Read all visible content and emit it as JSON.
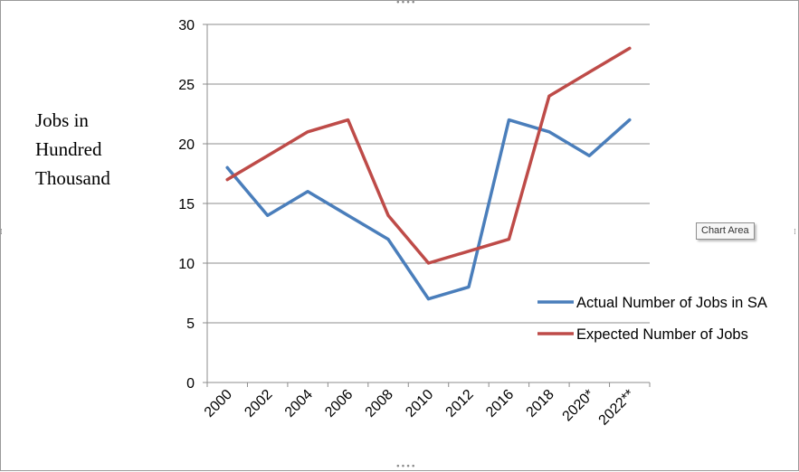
{
  "chart_data": {
    "type": "line",
    "categories": [
      "2000",
      "2002",
      "2004",
      "2006",
      "2008",
      "2010",
      "2012",
      "2016",
      "2018",
      "2020*",
      "2022**"
    ],
    "series": [
      {
        "name": "Actual Number of Jobs in SA",
        "color": "#4a7ebb",
        "values": [
          18,
          14,
          16,
          14,
          12,
          7,
          8,
          22,
          21,
          19,
          22
        ]
      },
      {
        "name": "Expected Number of Jobs",
        "color": "#be4b48",
        "values": [
          17,
          19,
          21,
          22,
          14,
          10,
          11,
          12,
          24,
          26,
          28
        ]
      }
    ],
    "ylabel_lines": [
      "Jobs in",
      "Hundred",
      "Thousand"
    ],
    "yticks": [
      0,
      5,
      10,
      15,
      20,
      25,
      30
    ],
    "ylim": [
      0,
      30
    ],
    "grid": true,
    "legend_position": "right"
  },
  "tooltip": "Chart Area"
}
